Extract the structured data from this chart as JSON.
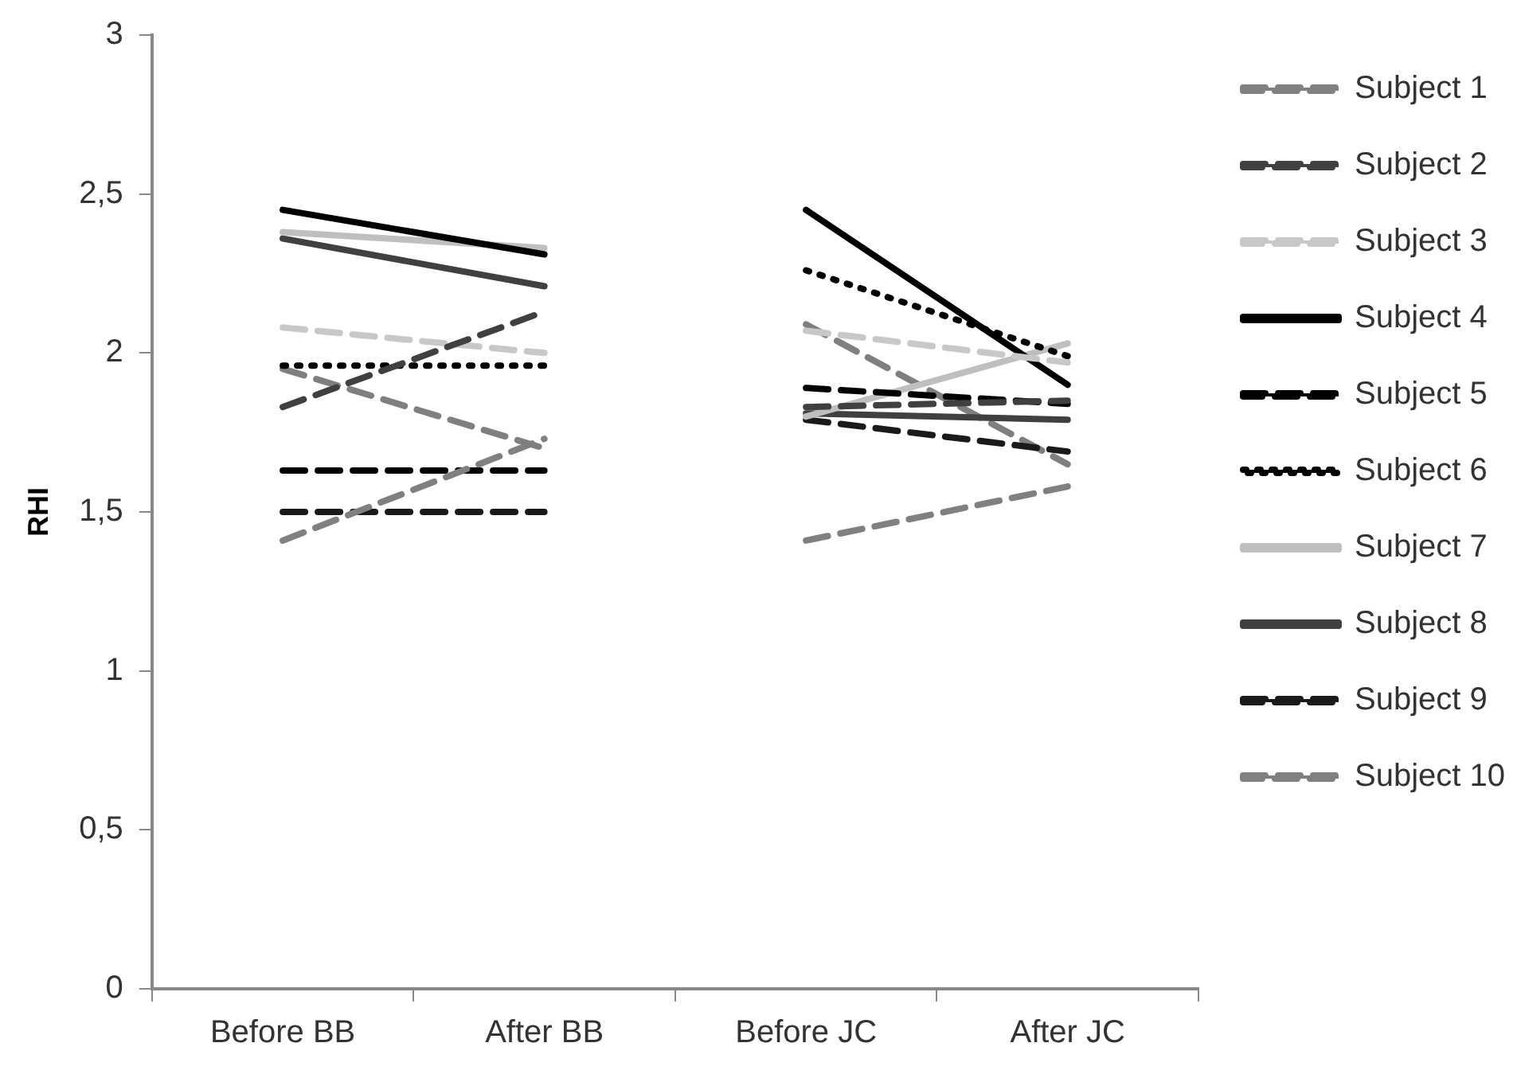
{
  "chart_data": {
    "type": "line",
    "ylabel": "RHI",
    "categories": [
      "Before BB",
      "After BB",
      "Before JC",
      "After JC"
    ],
    "ylim": [
      0,
      3
    ],
    "yticks": [
      0,
      {
        "value": 0.5,
        "label": "0,5"
      },
      1,
      {
        "value": 1.5,
        "label": "1,5"
      },
      2,
      {
        "value": 2.5,
        "label": "2,5"
      },
      3
    ],
    "grid": false,
    "legend": "right",
    "marker": "none",
    "series": [
      {
        "name": "Subject 1",
        "color": "#808080",
        "line_style": "dashed",
        "values": [
          1.41,
          1.73,
          null,
          null
        ]
      },
      {
        "name": "Subject 2",
        "color": "#404040",
        "line_style": "dashed",
        "values": [
          1.83,
          2.13,
          null,
          null
        ]
      },
      {
        "name": "Subject 3",
        "color": "#c8c8c8",
        "line_style": "dashed",
        "values": [
          2.08,
          2.0,
          null,
          null
        ]
      },
      {
        "name": "Subject 4",
        "color": "#000000",
        "line_style": "solid",
        "values": [
          2.45,
          2.31,
          null,
          null
        ]
      },
      {
        "name": "Subject 5",
        "color": "#000000",
        "line_style": "dashed",
        "values": [
          1.63,
          1.63,
          null,
          null
        ]
      },
      {
        "name": "Subject 6",
        "color": "#000000",
        "line_style": "dotted",
        "values": [
          1.96,
          1.96,
          null,
          null
        ]
      },
      {
        "name": "Subject 7",
        "color": "#bfbfbf",
        "line_style": "solid",
        "values": [
          2.38,
          2.33,
          null,
          null
        ]
      },
      {
        "name": "Subject 8",
        "color": "#404040",
        "line_style": "solid",
        "values": [
          2.36,
          2.21,
          null,
          null
        ]
      },
      {
        "name": "Subject 9",
        "color": "#1a1a1a",
        "line_style": "dashed",
        "values": [
          1.5,
          1.5,
          null,
          null
        ]
      },
      {
        "name": "Subject 10",
        "color": "#7f7f7f",
        "line_style": "dashed",
        "values": [
          1.95,
          1.7,
          null,
          null
        ]
      },
      {
        "color": "#808080",
        "line_style": "dashed",
        "values": [
          null,
          null,
          1.41,
          1.58
        ]
      },
      {
        "color": "#404040",
        "line_style": "dashed",
        "values": [
          null,
          null,
          1.83,
          1.85
        ]
      },
      {
        "color": "#c8c8c8",
        "line_style": "dashed",
        "values": [
          null,
          null,
          2.07,
          1.97
        ]
      },
      {
        "color": "#000000",
        "line_style": "solid",
        "values": [
          null,
          null,
          2.45,
          1.9
        ]
      },
      {
        "color": "#000000",
        "line_style": "dashed",
        "values": [
          null,
          null,
          1.89,
          1.84
        ]
      },
      {
        "color": "#000000",
        "line_style": "dotted",
        "values": [
          null,
          null,
          2.26,
          1.99
        ]
      },
      {
        "color": "#bfbfbf",
        "line_style": "solid",
        "values": [
          null,
          null,
          1.8,
          2.03
        ]
      },
      {
        "color": "#404040",
        "line_style": "solid",
        "values": [
          null,
          null,
          1.81,
          1.79
        ]
      },
      {
        "color": "#1a1a1a",
        "line_style": "dashed",
        "values": [
          null,
          null,
          1.79,
          1.69
        ]
      },
      {
        "color": "#7f7f7f",
        "line_style": "dashed",
        "values": [
          null,
          null,
          2.09,
          1.65
        ]
      }
    ]
  }
}
